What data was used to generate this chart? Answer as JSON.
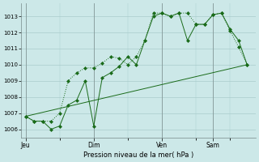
{
  "xlabel": "Pression niveau de la mer( hPa )",
  "ylim": [
    1005.5,
    1013.8
  ],
  "yticks": [
    1006,
    1007,
    1008,
    1009,
    1010,
    1011,
    1012,
    1013
  ],
  "bg_color": "#cce8e8",
  "line_color": "#1a6b1a",
  "grid_color": "#aacccc",
  "day_labels": [
    "Jeu",
    "Dim",
    "Ven",
    "Sam"
  ],
  "day_positions": [
    0,
    8,
    16,
    22
  ],
  "xlim": [
    -0.5,
    27
  ],
  "line1_x": [
    0,
    1,
    2,
    3,
    4,
    5,
    6,
    7,
    8,
    9,
    10,
    11,
    12,
    13,
    14,
    15,
    16,
    17,
    18,
    19,
    20,
    21,
    22,
    23,
    24,
    25,
    26
  ],
  "line1_y": [
    1006.8,
    1006.5,
    1006.5,
    1006.5,
    1007.0,
    1009.0,
    1009.5,
    1009.8,
    1009.8,
    1010.1,
    1010.5,
    1010.4,
    1010.0,
    1010.5,
    1011.5,
    1013.2,
    1013.2,
    1013.0,
    1013.2,
    1013.2,
    1012.5,
    1012.5,
    1013.1,
    1013.2,
    1012.1,
    1011.1,
    1010.0
  ],
  "line2_x": [
    0,
    1,
    2,
    3,
    4,
    5,
    6,
    7,
    8,
    9,
    10,
    11,
    12,
    13,
    14,
    15,
    16,
    17,
    18,
    19,
    20,
    21,
    22,
    23,
    24,
    25,
    26
  ],
  "line2_y": [
    1006.8,
    1006.5,
    1006.5,
    1006.0,
    1006.2,
    1007.5,
    1007.8,
    1009.0,
    1006.2,
    1009.2,
    1009.5,
    1009.9,
    1010.5,
    1010.0,
    1011.5,
    1013.0,
    1013.2,
    1013.0,
    1013.2,
    1011.5,
    1012.5,
    1012.5,
    1013.1,
    1013.2,
    1012.2,
    1011.5,
    1010.0
  ],
  "line3_x": [
    0,
    26
  ],
  "line3_y": [
    1006.8,
    1010.0
  ],
  "vline_color": "#7a8a8a",
  "vline_alpha": 0.8
}
